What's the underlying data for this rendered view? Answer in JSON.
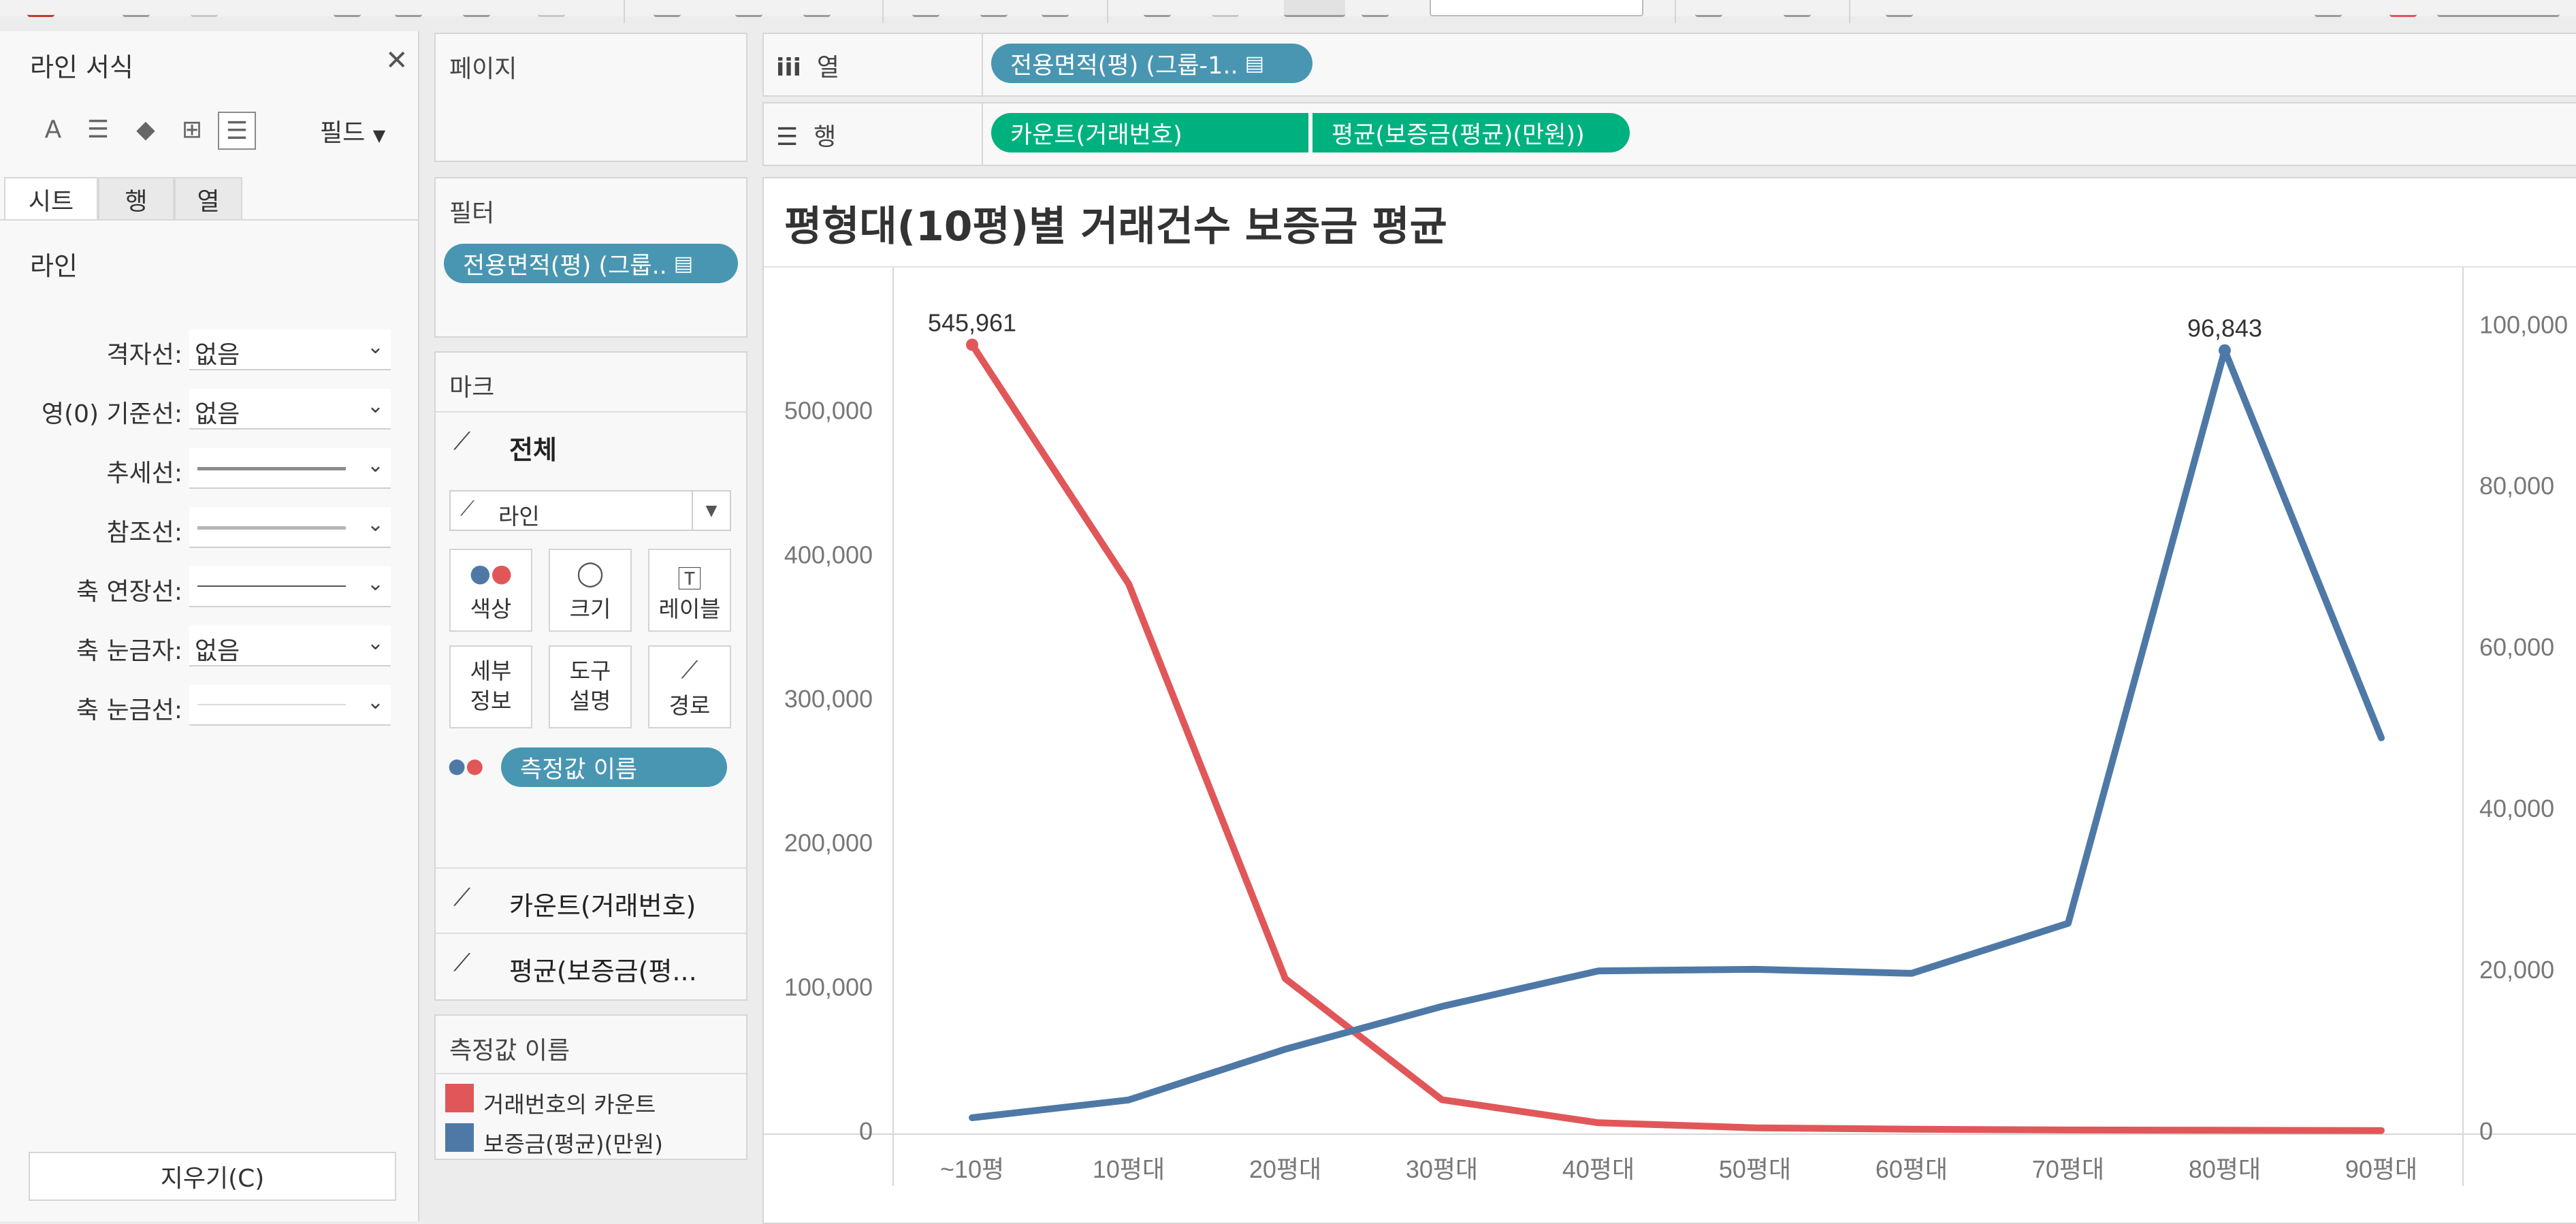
{
  "format_pane": {
    "title": "라인 서식",
    "field_label": "필드",
    "tabs": [
      "시트",
      "행",
      "열"
    ],
    "section": "라인",
    "rows": [
      {
        "label": "격자선:",
        "value": "없음",
        "kind": "text"
      },
      {
        "label": "영(0) 기준선:",
        "value": "없음",
        "kind": "text"
      },
      {
        "label": "추세선:",
        "value": "",
        "kind": "line",
        "color": "#8c8c8c",
        "weight": 5
      },
      {
        "label": "참조선:",
        "value": "",
        "kind": "line",
        "color": "#b5b5b5",
        "weight": 5
      },
      {
        "label": "축 연장선:",
        "value": "",
        "kind": "line",
        "color": "#555555",
        "weight": 2
      },
      {
        "label": "축 눈금자:",
        "value": "없음",
        "kind": "text"
      },
      {
        "label": "축 눈금선:",
        "value": "",
        "kind": "line",
        "color": "#dddddd",
        "weight": 2
      }
    ],
    "clear_button": "지우기(C)"
  },
  "pages": {
    "title": "페이지"
  },
  "filters": {
    "title": "필터",
    "pill": "전용면적(평) (그룹.."
  },
  "marks": {
    "title": "마크",
    "all_label": "전체",
    "mark_type": "라인",
    "buttons": {
      "color": "색상",
      "size": "크기",
      "label": "레이블",
      "detail": [
        "세부",
        "정보"
      ],
      "tooltip": [
        "도구",
        "설명"
      ],
      "path": "경로"
    },
    "measure_pill": "측정값 이름",
    "sections": [
      "카운트(거래번호)",
      "평균(보증금(평..."
    ]
  },
  "legend": {
    "title": "측정값 이름",
    "items": [
      {
        "label": "거래번호의 카운트",
        "color": "#e15759"
      },
      {
        "label": "보증금(평균)(만원)",
        "color": "#4e79a7"
      }
    ]
  },
  "shelves": {
    "columns": {
      "label": "열",
      "pills": [
        "전용면적(평) (그룹-1.."
      ]
    },
    "rows": {
      "label": "행",
      "pills": [
        "카운트(거래번호)",
        "평균(보증금(평균)(만원))"
      ]
    }
  },
  "chart_data": {
    "type": "line",
    "title": "평형대(10평)별 거래건수 보증금 평균",
    "categories": [
      "~10평",
      "10평대",
      "20평대",
      "30평대",
      "40평대",
      "50평대",
      "60평대",
      "70평대",
      "80평대",
      "90평대"
    ],
    "series": [
      {
        "name": "거래번호의 카운트",
        "axis": "left",
        "color": "#e15759",
        "values": [
          545961,
          380000,
          106000,
          22000,
          6000,
          2500,
          1500,
          1000,
          800,
          600
        ]
      },
      {
        "name": "보증금(평균)(만원)",
        "axis": "right",
        "color": "#4e79a7",
        "values": [
          1700,
          3900,
          10200,
          15500,
          19900,
          20100,
          19600,
          25800,
          96843,
          48800
        ]
      }
    ],
    "y_left": {
      "ticks": [
        0,
        100000,
        200000,
        300000,
        400000,
        500000
      ],
      "tick_labels": [
        "0",
        "100,000",
        "200,000",
        "300,000",
        "400,000",
        "500,000"
      ],
      "range": [
        0,
        600000
      ]
    },
    "y_right": {
      "ticks": [
        0,
        20000,
        40000,
        60000,
        80000,
        100000
      ],
      "tick_labels": [
        "0",
        "20,000",
        "40,000",
        "60,000",
        "80,000",
        "100,000"
      ],
      "range": [
        0,
        107200
      ]
    },
    "annotations": [
      {
        "series": 0,
        "index": 0,
        "text": "545,961"
      },
      {
        "series": 1,
        "index": 8,
        "text": "96,843"
      }
    ],
    "grid": false
  }
}
